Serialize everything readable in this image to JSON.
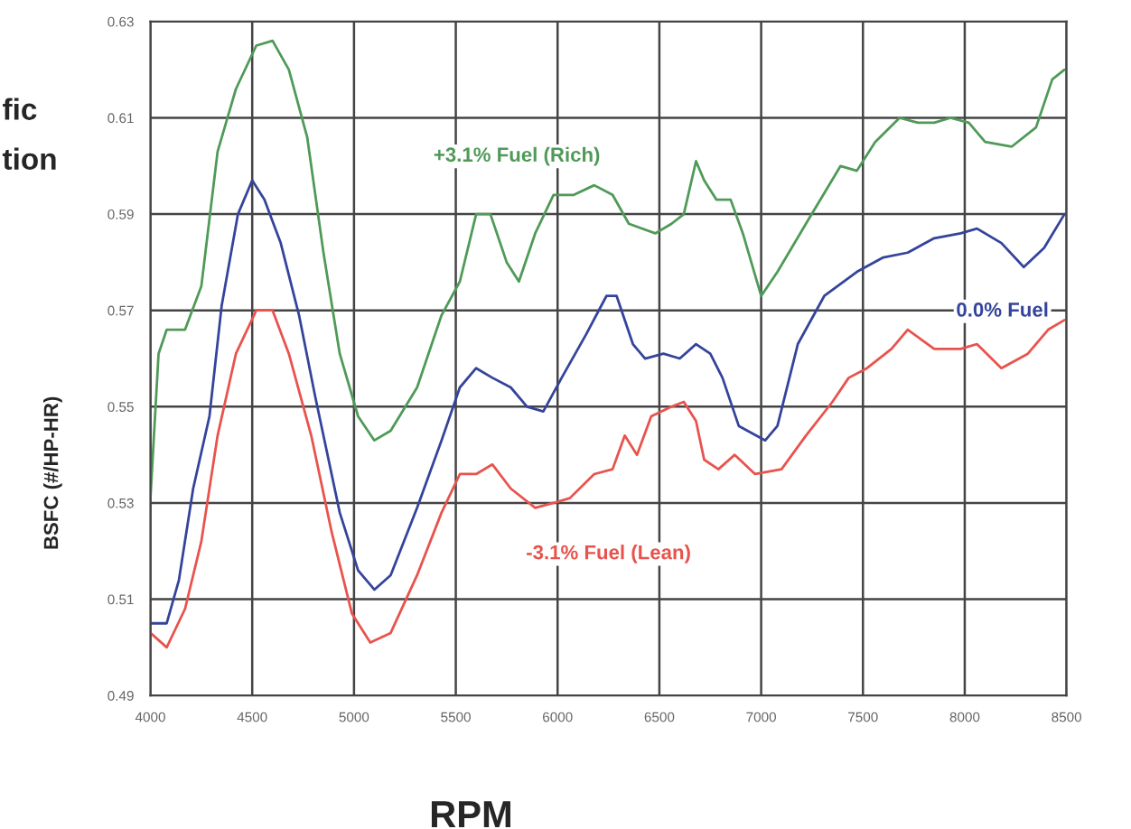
{
  "chart_data": {
    "type": "line",
    "xlabel": "RPM",
    "ylabel": "BSFC (#/HP-HR)",
    "annotations": [
      "fic",
      "tion"
    ],
    "xlim": [
      4000,
      8500
    ],
    "xticks": [
      4000,
      4500,
      5000,
      5500,
      6000,
      6500,
      7000,
      7500,
      8000,
      8500
    ],
    "ylim": [
      0.49,
      0.63
    ],
    "yticks": [
      0.49,
      0.51,
      0.53,
      0.55,
      0.57,
      0.59,
      0.61,
      0.63
    ],
    "grid": true,
    "legend": false,
    "marker": "none",
    "line_style": "solid",
    "series": [
      {
        "name": "+3.1% Fuel (Rich)",
        "color": "#4f9a58",
        "x": [
          4000,
          4040,
          4080,
          4170,
          4250,
          4330,
          4420,
          4520,
          4600,
          4680,
          4770,
          4850,
          4930,
          5020,
          5100,
          5180,
          5310,
          5430,
          5520,
          5600,
          5670,
          5750,
          5810,
          5890,
          5980,
          6080,
          6180,
          6270,
          6350,
          6480,
          6560,
          6620,
          6680,
          6720,
          6780,
          6850,
          6910,
          7000,
          7080,
          7220,
          7390,
          7470,
          7560,
          7680,
          7770,
          7850,
          7930,
          8020,
          8100,
          8230,
          8350,
          8430,
          8490
        ],
        "values": [
          0.531,
          0.561,
          0.566,
          0.566,
          0.575,
          0.603,
          0.616,
          0.625,
          0.626,
          0.62,
          0.606,
          0.582,
          0.561,
          0.548,
          0.543,
          0.545,
          0.554,
          0.569,
          0.576,
          0.59,
          0.59,
          0.58,
          0.576,
          0.586,
          0.594,
          0.594,
          0.596,
          0.594,
          0.588,
          0.586,
          0.588,
          0.59,
          0.601,
          0.597,
          0.593,
          0.593,
          0.586,
          0.573,
          0.578,
          0.588,
          0.6,
          0.599,
          0.605,
          0.61,
          0.609,
          0.609,
          0.61,
          0.609,
          0.605,
          0.604,
          0.608,
          0.618,
          0.62
        ]
      },
      {
        "name": "0.0% Fuel",
        "color": "#34449c",
        "x": [
          4000,
          4080,
          4140,
          4210,
          4290,
          4350,
          4430,
          4500,
          4560,
          4640,
          4730,
          4810,
          4930,
          5020,
          5100,
          5180,
          5310,
          5430,
          5520,
          5600,
          5680,
          5770,
          5850,
          5930,
          6020,
          6140,
          6240,
          6290,
          6370,
          6430,
          6520,
          6600,
          6680,
          6750,
          6810,
          6890,
          7020,
          7080,
          7180,
          7310,
          7470,
          7600,
          7720,
          7850,
          7980,
          8060,
          8180,
          8290,
          8390,
          8490
        ],
        "values": [
          0.505,
          0.505,
          0.514,
          0.533,
          0.548,
          0.571,
          0.59,
          0.597,
          0.593,
          0.584,
          0.569,
          0.552,
          0.528,
          0.516,
          0.512,
          0.515,
          0.529,
          0.543,
          0.554,
          0.558,
          0.556,
          0.554,
          0.55,
          0.549,
          0.556,
          0.565,
          0.573,
          0.573,
          0.563,
          0.56,
          0.561,
          0.56,
          0.563,
          0.561,
          0.556,
          0.546,
          0.543,
          0.546,
          0.563,
          0.573,
          0.578,
          0.581,
          0.582,
          0.585,
          0.586,
          0.587,
          0.584,
          0.579,
          0.583,
          0.59
        ]
      },
      {
        "name": "-3.1% Fuel (Lean)",
        "color": "#e8534d",
        "x": [
          4000,
          4080,
          4170,
          4250,
          4330,
          4420,
          4520,
          4600,
          4680,
          4790,
          4890,
          4990,
          5080,
          5180,
          5310,
          5430,
          5520,
          5600,
          5680,
          5770,
          5890,
          5980,
          6060,
          6180,
          6270,
          6330,
          6390,
          6460,
          6560,
          6620,
          6680,
          6720,
          6790,
          6870,
          6970,
          7100,
          7220,
          7350,
          7430,
          7520,
          7640,
          7720,
          7850,
          7980,
          8060,
          8180,
          8310,
          8410,
          8490
        ],
        "values": [
          0.503,
          0.5,
          0.508,
          0.522,
          0.544,
          0.561,
          0.57,
          0.57,
          0.561,
          0.544,
          0.524,
          0.507,
          0.501,
          0.503,
          0.515,
          0.528,
          0.536,
          0.536,
          0.538,
          0.533,
          0.529,
          0.53,
          0.531,
          0.536,
          0.537,
          0.544,
          0.54,
          0.548,
          0.55,
          0.551,
          0.547,
          0.539,
          0.537,
          0.54,
          0.536,
          0.537,
          0.544,
          0.551,
          0.556,
          0.558,
          0.562,
          0.566,
          0.562,
          0.562,
          0.563,
          0.558,
          0.561,
          0.566,
          0.568
        ]
      }
    ]
  }
}
